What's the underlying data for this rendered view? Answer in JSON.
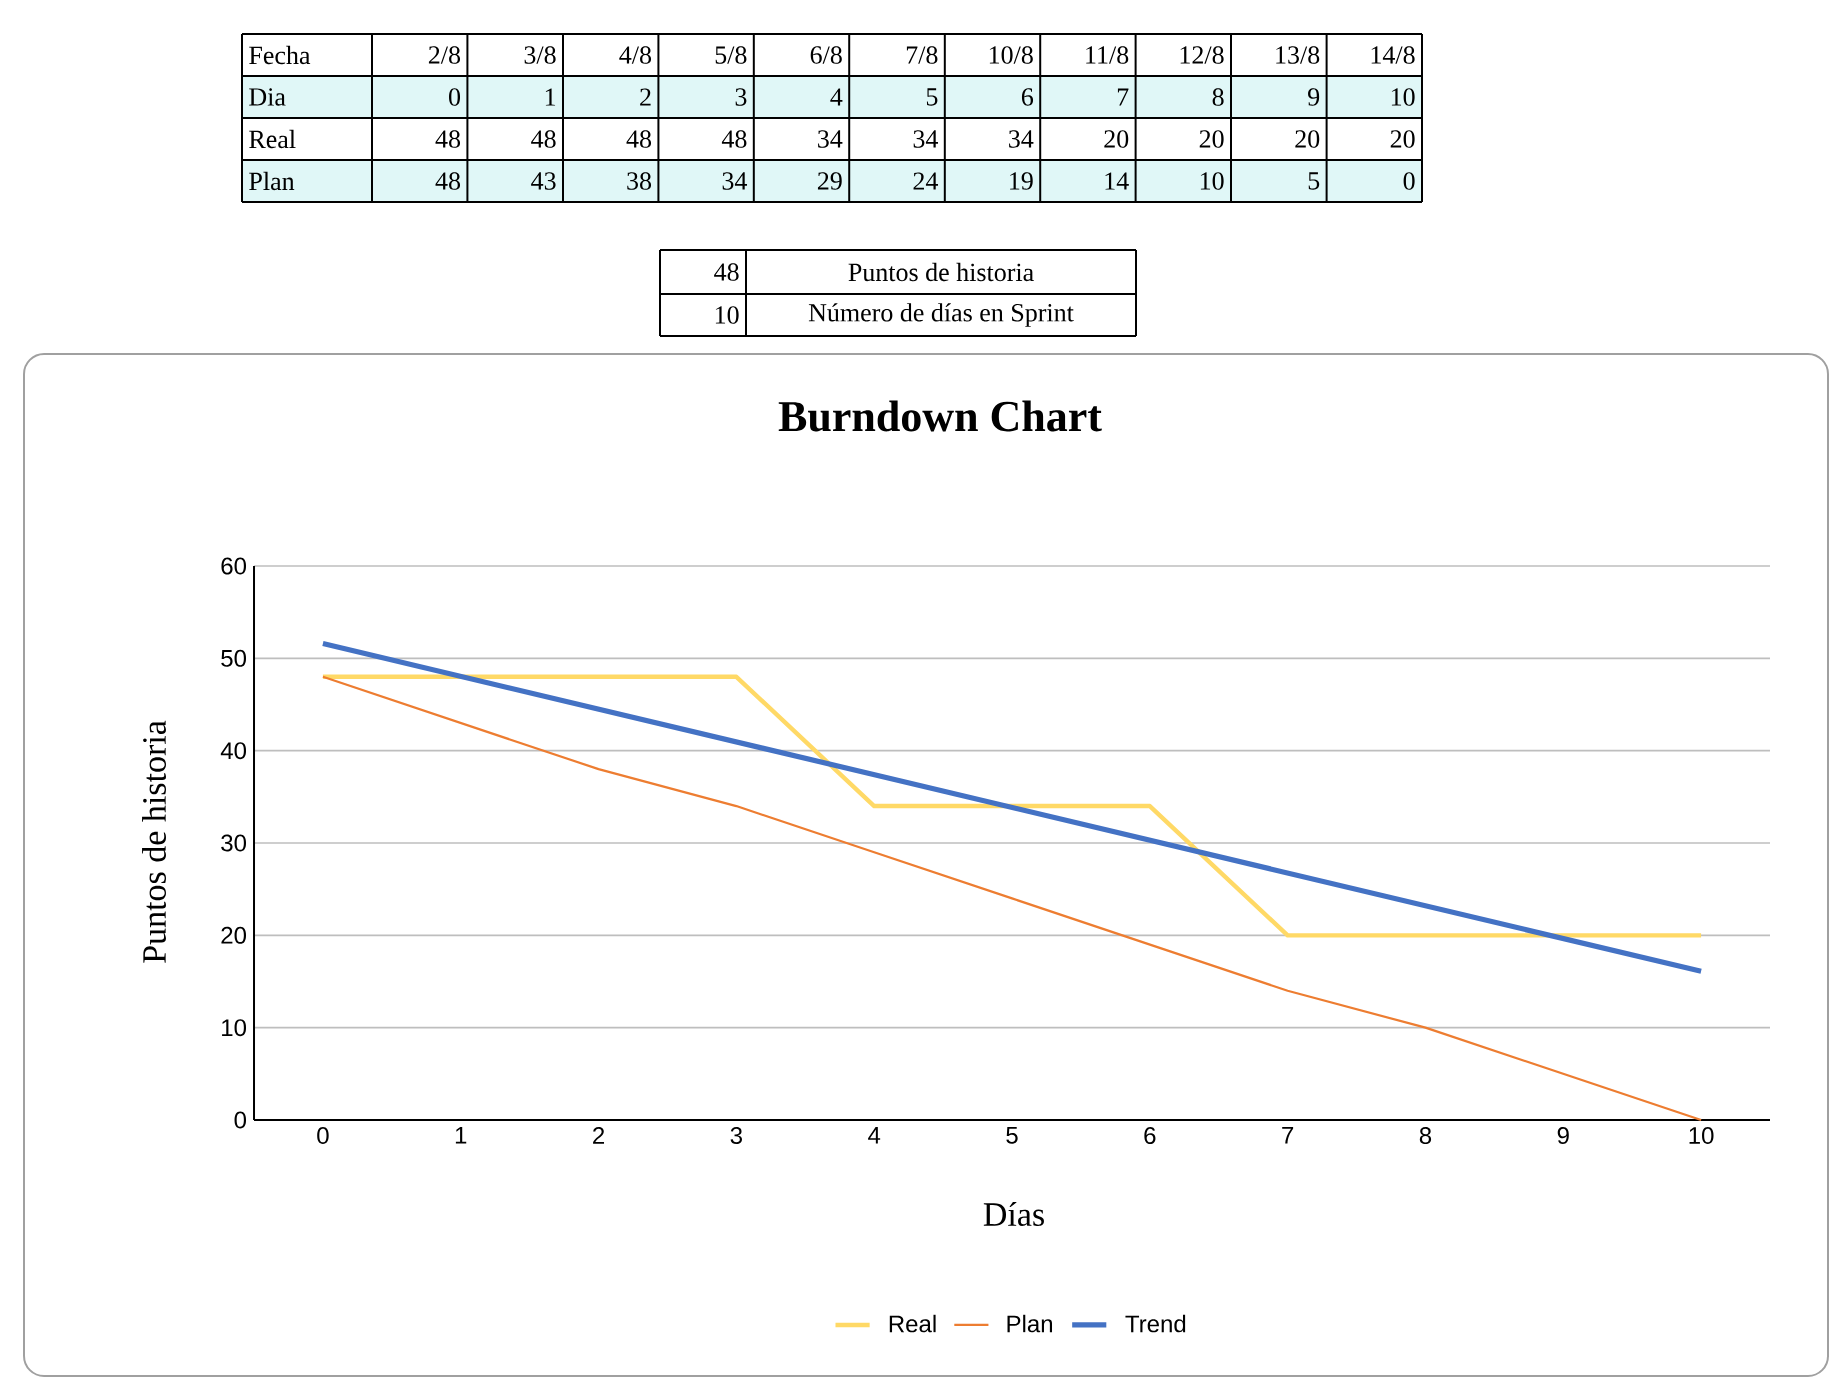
{
  "chart_data": {
    "type": "line",
    "title": "Burndown Chart",
    "xlabel": "Días",
    "ylabel": "Puntos de historia",
    "x": [
      0,
      1,
      2,
      3,
      4,
      5,
      6,
      7,
      8,
      9,
      10
    ],
    "xlim": [
      -0.5,
      10.5
    ],
    "xticks": [
      0,
      1,
      2,
      3,
      4,
      5,
      6,
      7,
      8,
      9,
      10
    ],
    "ylim": [
      0,
      60
    ],
    "yticks": [
      0,
      10,
      20,
      30,
      40,
      50,
      60
    ],
    "grid": "y",
    "legend": "bottom",
    "marker": "none",
    "line_style": "solid",
    "series": [
      {
        "name": "Real",
        "color": "#ffd966",
        "values": [
          48,
          48,
          48,
          48,
          34,
          34,
          34,
          20,
          20,
          20,
          20
        ]
      },
      {
        "name": "Plan",
        "color": "#ed7d31",
        "values": [
          48,
          43,
          38,
          34,
          29,
          24,
          19,
          14,
          10,
          5,
          0
        ]
      },
      {
        "name": "Trend",
        "color": "#4472c4",
        "x": [
          0,
          10
        ],
        "values": [
          51.6,
          16.1
        ]
      }
    ],
    "annotations": [
      "Fecha",
      "2/8",
      "3/8",
      "4/8",
      "5/8",
      "6/8",
      "7/8",
      "10/8",
      "11/8",
      "12/8",
      "13/8",
      "14/8",
      "Dia",
      "0",
      "1",
      "2",
      "3",
      "4",
      "5",
      "6",
      "7",
      "8",
      "9",
      "10",
      "Real",
      "48",
      "48",
      "48",
      "48",
      "34",
      "34",
      "34",
      "20",
      "20",
      "20",
      "20",
      "Plan",
      "48",
      "43",
      "38",
      "34",
      "29",
      "24",
      "19",
      "14",
      "10",
      "5",
      "0",
      "48",
      "Puntos de historia",
      "10",
      "Número de días en Sprint"
    ]
  }
}
